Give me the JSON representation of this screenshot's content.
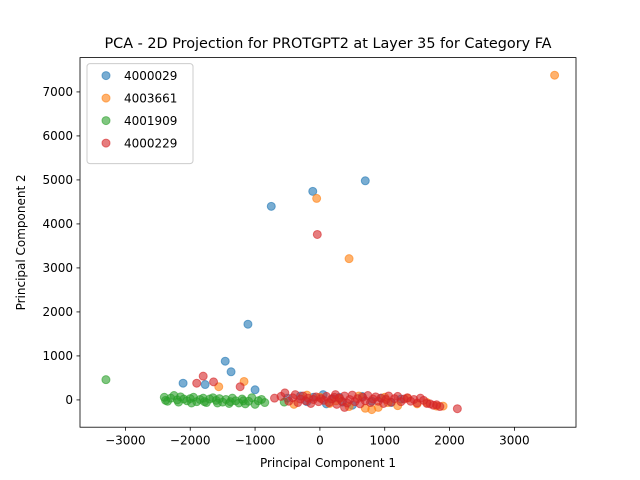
{
  "chart_data": {
    "type": "scatter",
    "title": "PCA - 2D Projection for PROTGPT2 at Layer 35 for Category FA",
    "xlabel": "Principal Component 1",
    "ylabel": "Principal Component 2",
    "xlim": [
      -3700,
      3950
    ],
    "ylim": [
      -620,
      7780
    ],
    "xticks": [
      -3000,
      -2000,
      -1000,
      0,
      1000,
      2000,
      3000
    ],
    "yticks": [
      0,
      1000,
      2000,
      3000,
      4000,
      5000,
      6000,
      7000
    ],
    "grid": false,
    "legend_position": "top-left",
    "series": [
      {
        "name": "4000029",
        "color": "#1f77b4",
        "points": [
          [
            700,
            4980
          ],
          [
            -110,
            4740
          ],
          [
            -750,
            4400
          ],
          [
            -1110,
            1720
          ],
          [
            -1460,
            880
          ],
          [
            -1370,
            640
          ],
          [
            -1770,
            350
          ],
          [
            -2110,
            380
          ],
          [
            -1000,
            230
          ],
          [
            -500,
            40
          ],
          [
            -300,
            90
          ],
          [
            -100,
            60
          ],
          [
            50,
            120
          ],
          [
            200,
            30
          ],
          [
            350,
            -50
          ],
          [
            500,
            -120
          ],
          [
            650,
            80
          ],
          [
            800,
            -30
          ],
          [
            950,
            40
          ],
          [
            1100,
            -60
          ],
          [
            1250,
            20
          ],
          [
            -200,
            -40
          ],
          [
            100,
            -90
          ],
          [
            300,
            60
          ]
        ]
      },
      {
        "name": "4003661",
        "color": "#ff7f0e",
        "points": [
          [
            3620,
            7380
          ],
          [
            -50,
            4580
          ],
          [
            450,
            3210
          ],
          [
            -1170,
            420
          ],
          [
            -1560,
            300
          ],
          [
            -400,
            -100
          ],
          [
            -200,
            110
          ],
          [
            0,
            60
          ],
          [
            150,
            -80
          ],
          [
            300,
            30
          ],
          [
            450,
            -150
          ],
          [
            600,
            90
          ],
          [
            700,
            -190
          ],
          [
            800,
            -220
          ],
          [
            900,
            -170
          ],
          [
            1050,
            -60
          ],
          [
            1200,
            -130
          ],
          [
            1350,
            40
          ],
          [
            1500,
            -90
          ],
          [
            1650,
            -60
          ],
          [
            1800,
            -140
          ],
          [
            1900,
            -140
          ],
          [
            1000,
            60
          ],
          [
            250,
            -20
          ]
        ]
      },
      {
        "name": "4001909",
        "color": "#2ca02c",
        "points": [
          [
            -3300,
            460
          ],
          [
            -2400,
            60
          ],
          [
            -2350,
            -30
          ],
          [
            -2300,
            40
          ],
          [
            -2250,
            100
          ],
          [
            -2200,
            0
          ],
          [
            -2150,
            70
          ],
          [
            -2100,
            20
          ],
          [
            -2050,
            -20
          ],
          [
            -2000,
            30
          ],
          [
            -1950,
            60
          ],
          [
            -1900,
            -40
          ],
          [
            -1850,
            10
          ],
          [
            -1800,
            40
          ],
          [
            -1750,
            -60
          ],
          [
            -1700,
            20
          ],
          [
            -1650,
            50
          ],
          [
            -1600,
            -10
          ],
          [
            -1550,
            30
          ],
          [
            -1500,
            -50
          ],
          [
            -1450,
            10
          ],
          [
            -1400,
            -80
          ],
          [
            -1350,
            40
          ],
          [
            -1300,
            -20
          ],
          [
            -1250,
            -70
          ],
          [
            -1200,
            20
          ],
          [
            -1150,
            -90
          ],
          [
            -1100,
            -30
          ],
          [
            -1050,
            50
          ],
          [
            -1000,
            -100
          ],
          [
            -950,
            -20
          ],
          [
            -900,
            10
          ],
          [
            -850,
            -60
          ],
          [
            -2380,
            -10
          ],
          [
            -2180,
            -50
          ],
          [
            -1980,
            -70
          ],
          [
            -1780,
            -40
          ],
          [
            -1580,
            -70
          ],
          [
            -1380,
            -40
          ],
          [
            -1180,
            -20
          ],
          [
            -550,
            -50
          ]
        ]
      },
      {
        "name": "4000229",
        "color": "#d62728",
        "points": [
          [
            -40,
            3760
          ],
          [
            -1800,
            540
          ],
          [
            -1640,
            410
          ],
          [
            -1900,
            380
          ],
          [
            -1230,
            300
          ],
          [
            -700,
            40
          ],
          [
            -600,
            80
          ],
          [
            -540,
            160
          ],
          [
            -480,
            -30
          ],
          [
            -420,
            50
          ],
          [
            -380,
            120
          ],
          [
            -340,
            -60
          ],
          [
            -300,
            20
          ],
          [
            -260,
            90
          ],
          [
            -220,
            -20
          ],
          [
            -180,
            40
          ],
          [
            -140,
            -80
          ],
          [
            -100,
            10
          ],
          [
            -60,
            70
          ],
          [
            -20,
            -40
          ],
          [
            20,
            30
          ],
          [
            60,
            -10
          ],
          [
            100,
            80
          ],
          [
            140,
            -60
          ],
          [
            180,
            20
          ],
          [
            220,
            60
          ],
          [
            260,
            -100
          ],
          [
            300,
            40
          ],
          [
            340,
            -30
          ],
          [
            380,
            90
          ],
          [
            420,
            -70
          ],
          [
            460,
            10
          ],
          [
            500,
            110
          ],
          [
            540,
            -40
          ],
          [
            580,
            30
          ],
          [
            620,
            -90
          ],
          [
            660,
            60
          ],
          [
            700,
            -20
          ],
          [
            740,
            100
          ],
          [
            780,
            -60
          ],
          [
            820,
            20
          ],
          [
            860,
            70
          ],
          [
            900,
            -30
          ],
          [
            940,
            40
          ],
          [
            980,
            -80
          ],
          [
            1020,
            10
          ],
          [
            1060,
            90
          ],
          [
            1100,
            -50
          ],
          [
            1150,
            30
          ],
          [
            1200,
            80
          ],
          [
            1250,
            -40
          ],
          [
            1300,
            20
          ],
          [
            1350,
            50
          ],
          [
            1400,
            -30
          ],
          [
            1450,
            10
          ],
          [
            1500,
            -70
          ],
          [
            1550,
            40
          ],
          [
            1600,
            -10
          ],
          [
            1650,
            -80
          ],
          [
            1700,
            -90
          ],
          [
            1750,
            -120
          ],
          [
            1800,
            -110
          ],
          [
            1850,
            -150
          ],
          [
            2120,
            -200
          ],
          [
            380,
            -170
          ],
          [
            240,
            120
          ]
        ]
      }
    ]
  }
}
